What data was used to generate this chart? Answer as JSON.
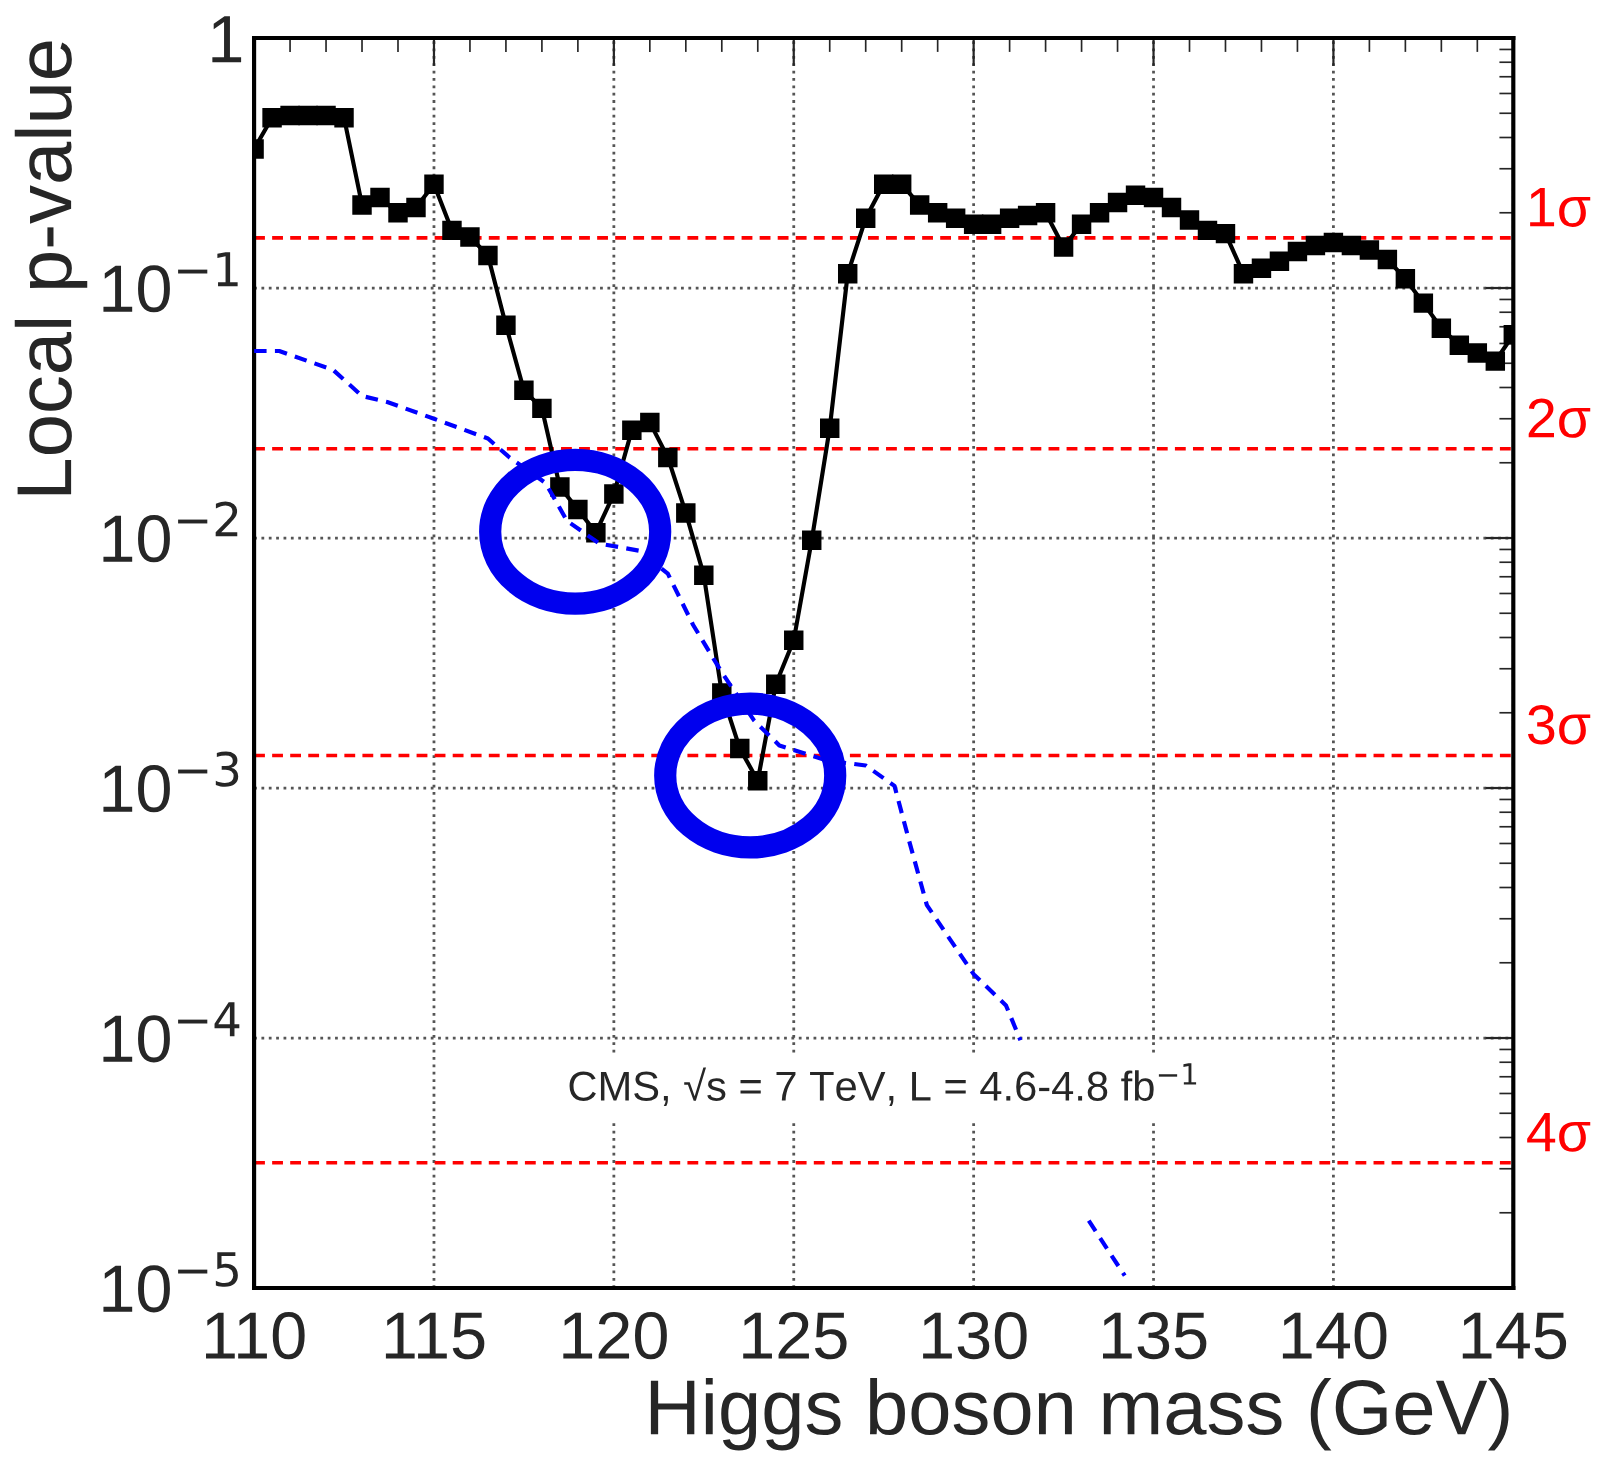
{
  "chart_data": {
    "type": "line",
    "xlabel": "Higgs boson mass (GeV)",
    "ylabel": "Local p-value",
    "log": "y",
    "grid": true,
    "xlim": [
      110,
      145
    ],
    "xticks": [
      110,
      115,
      120,
      125,
      130,
      135,
      140,
      145
    ],
    "ylim": [
      1e-05,
      1
    ],
    "yticks": [
      {
        "value": 1e-05,
        "label": "10$^{−5}$"
      },
      {
        "value": 0.0001,
        "label": "10$^{−4}$"
      },
      {
        "value": 0.001,
        "label": "10$^{−3}$"
      },
      {
        "value": 0.01,
        "label": "10$^{−2}$"
      },
      {
        "value": 0.1,
        "label": "10$^{−1}$"
      },
      {
        "value": 1,
        "label": "1"
      }
    ],
    "series": [
      {
        "color": "#000000",
        "marker": "square",
        "line_style": "solid",
        "x": [
          110,
          110.5,
          111,
          111.5,
          112,
          112.5,
          113,
          113.5,
          114,
          114.5,
          115,
          115.5,
          116,
          116.5,
          117,
          117.5,
          118,
          118.5,
          119,
          119.5,
          120,
          120.5,
          121,
          121.5,
          122,
          122.5,
          123,
          123.5,
          124,
          124.5,
          125,
          125.5,
          126,
          126.5,
          127,
          127.5,
          128,
          128.5,
          129,
          129.5,
          130,
          130.5,
          131,
          131.5,
          132,
          132.5,
          133,
          133.5,
          134,
          134.5,
          135,
          135.5,
          136,
          136.5,
          137,
          137.5,
          138,
          138.5,
          139,
          139.5,
          140,
          140.5,
          141,
          141.5,
          142,
          142.5,
          143,
          143.5,
          144,
          144.5,
          145
        ],
        "values": [
          0.36,
          0.48,
          0.49,
          0.49,
          0.49,
          0.48,
          0.215,
          0.23,
          0.2,
          0.21,
          0.26,
          0.17,
          0.16,
          0.135,
          0.071,
          0.039,
          0.033,
          0.016,
          0.013,
          0.0105,
          0.015,
          0.027,
          0.029,
          0.021,
          0.0126,
          0.0071,
          0.0024,
          0.00144,
          0.00107,
          0.0026,
          0.0039,
          0.0098,
          0.0275,
          0.114,
          0.19,
          0.26,
          0.26,
          0.215,
          0.2,
          0.19,
          0.18,
          0.18,
          0.19,
          0.195,
          0.2,
          0.146,
          0.18,
          0.2,
          0.22,
          0.235,
          0.23,
          0.21,
          0.187,
          0.17,
          0.165,
          0.114,
          0.12,
          0.128,
          0.14,
          0.148,
          0.152,
          0.148,
          0.142,
          0.13,
          0.109,
          0.087,
          0.069,
          0.059,
          0.055,
          0.051,
          0.065
        ]
      },
      {
        "color": "#0000ff",
        "marker": "none",
        "line_style": "dashed",
        "x": [
          110,
          110.7,
          112.2,
          113,
          113.7,
          115,
          116.5,
          117.1,
          118.1,
          118.7,
          119.6,
          120.7,
          121.5,
          122.2,
          123,
          123.9,
          124.6,
          125.9,
          127,
          127.8,
          128.2,
          128.7,
          130,
          130.9,
          131.3,
          132.2,
          133.2,
          134.2
        ],
        "values": [
          0.056,
          0.056,
          0.047,
          0.037,
          0.035,
          0.03,
          0.025,
          0.021,
          0.0166,
          0.0117,
          0.0095,
          0.0089,
          0.0072,
          0.0045,
          0.0029,
          0.00186,
          0.00148,
          0.00129,
          0.00123,
          0.00102,
          0.00062,
          0.00034,
          0.00018,
          0.000135,
          9.8e-05,
          null,
          1.86e-05,
          1.12e-05
        ]
      }
    ],
    "ref_lines": [
      {
        "axis": "y",
        "value": 0.1587,
        "label": "1σ",
        "color": "#ff0000",
        "line_style": "dashed"
      },
      {
        "axis": "y",
        "value": 0.02275,
        "label": "2σ",
        "color": "#ff0000",
        "line_style": "dashed"
      },
      {
        "axis": "y",
        "value": 0.00135,
        "label": "3σ",
        "color": "#ff0000",
        "line_style": "dashed"
      },
      {
        "axis": "y",
        "value": 3.17e-05,
        "label": "4σ",
        "color": "#ff0000",
        "line_style": "dashed"
      }
    ],
    "annotations": [
      "CMS, √s = 7 TeV, L = 4.6-4.8 fb$^{−1}$"
    ]
  }
}
